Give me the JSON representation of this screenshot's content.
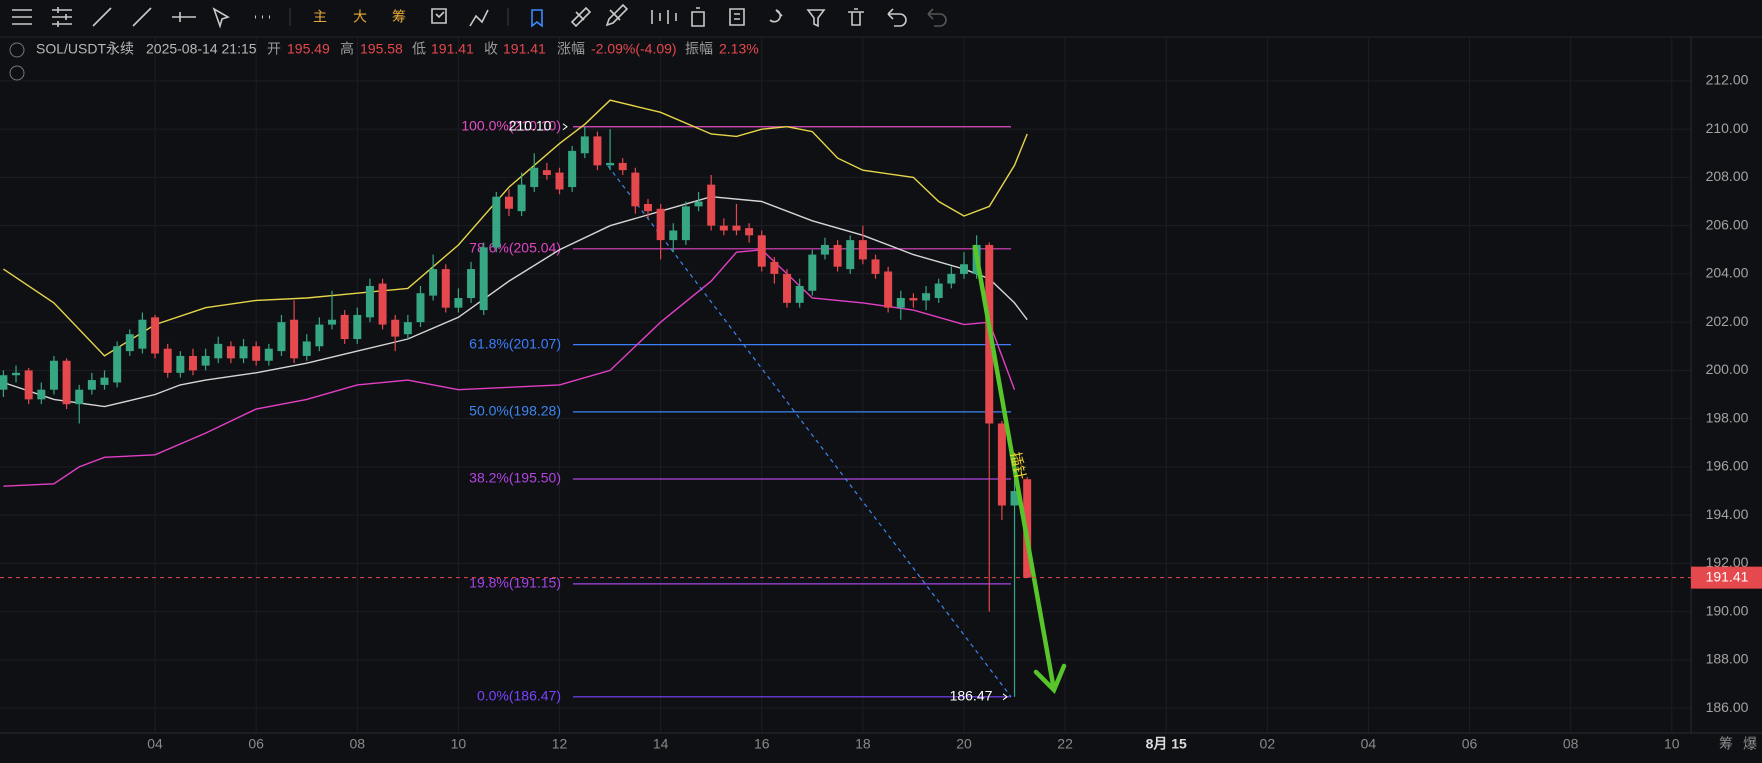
{
  "toolbar": {
    "labels": [
      "主",
      "大",
      "筹"
    ]
  },
  "header": {
    "symbol": "SOL/USDT永续",
    "datetime": "2025-08-14 21:15",
    "fields": [
      {
        "label": "开",
        "value": "195.49"
      },
      {
        "label": "高",
        "value": "195.58"
      },
      {
        "label": "低",
        "value": "191.41"
      },
      {
        "label": "收",
        "value": "191.41"
      },
      {
        "label": "涨幅",
        "value": "-2.09%(-4.09)"
      },
      {
        "label": "振幅",
        "value": "2.13%"
      }
    ]
  },
  "bottom_right": [
    "筹",
    "爆"
  ],
  "chart_data": {
    "type": "candlestick",
    "up_color": "#36a683",
    "down_color": "#e5484d",
    "xlim": [
      0.933,
      34.38
    ],
    "ylim": [
      184.97,
      213.82
    ],
    "xticks": [
      {
        "value": 4,
        "label": "04"
      },
      {
        "value": 6,
        "label": "06"
      },
      {
        "value": 8,
        "label": "08"
      },
      10,
      12,
      14,
      16,
      18,
      20,
      22,
      {
        "value": 24,
        "label": "8月 15"
      },
      {
        "value": 26,
        "label": "02"
      },
      {
        "value": 28,
        "label": "04"
      },
      {
        "value": 30,
        "label": "06"
      },
      {
        "value": 32,
        "label": "08"
      },
      {
        "value": 34,
        "label": "10"
      }
    ],
    "yticks": [
      {
        "value": 186,
        "label": "186.00"
      },
      {
        "value": 188,
        "label": "188.00"
      },
      {
        "value": 190,
        "label": "190.00"
      },
      {
        "value": 192,
        "label": "192.00"
      },
      {
        "value": 194,
        "label": "194.00"
      },
      {
        "value": 196,
        "label": "196.00"
      },
      {
        "value": 198,
        "label": "198.00"
      },
      {
        "value": 200,
        "label": "200.00"
      },
      {
        "value": 202,
        "label": "202.00"
      },
      {
        "value": 204,
        "label": "204.00"
      },
      {
        "value": 206,
        "label": "206.00"
      },
      {
        "value": 208,
        "label": "208.00"
      },
      {
        "value": 210,
        "label": "210.00"
      },
      {
        "value": 212,
        "label": "212.00"
      }
    ],
    "grid": true,
    "x": [
      1,
      1.25,
      1.5,
      1.75,
      2,
      2.25,
      2.5,
      2.75,
      3,
      3.25,
      3.5,
      3.75,
      4,
      4.25,
      4.5,
      4.75,
      5,
      5.25,
      5.5,
      5.75,
      6,
      6.25,
      6.5,
      6.75,
      7,
      7.25,
      7.5,
      7.75,
      8,
      8.25,
      8.5,
      8.75,
      9,
      9.25,
      9.5,
      9.75,
      10,
      10.25,
      10.5,
      10.75,
      11,
      11.25,
      11.5,
      11.75,
      12,
      12.25,
      12.5,
      12.75,
      13,
      13.25,
      13.5,
      13.75,
      14,
      14.25,
      14.5,
      14.75,
      15,
      15.25,
      15.5,
      15.75,
      16,
      16.25,
      16.5,
      16.75,
      17,
      17.25,
      17.5,
      17.75,
      18,
      18.25,
      18.5,
      18.75,
      19,
      19.25,
      19.5,
      19.75,
      20,
      20.25,
      20.5,
      20.75,
      21,
      21.25
    ],
    "open": [
      199.2,
      199.8,
      200.0,
      198.8,
      199.2,
      200.4,
      198.6,
      199.2,
      199.4,
      199.5,
      200.8,
      200.9,
      202.2,
      200.9,
      199.9,
      200.6,
      200.2,
      200.5,
      201.0,
      200.5,
      201.0,
      200.4,
      200.8,
      202.1,
      200.6,
      201.0,
      201.9,
      202.3,
      201.3,
      202.2,
      203.6,
      202.1,
      201.5,
      202.0,
      203.1,
      204.2,
      202.6,
      203.0,
      202.5,
      205.1,
      207.2,
      206.6,
      207.6,
      208.3,
      208.2,
      207.6,
      209.0,
      209.7,
      208.5,
      208.6,
      208.2,
      206.9,
      206.7,
      205.4,
      205.4,
      206.8,
      207.7,
      206.0,
      206.0,
      205.9,
      205.6,
      204.5,
      204.0,
      202.8,
      203.3,
      204.8,
      205.2,
      204.2,
      205.4,
      204.6,
      204.1,
      202.6,
      203.0,
      202.9,
      203.0,
      203.6,
      204.0,
      204.0,
      205.2,
      197.8,
      194.4,
      195.49
    ],
    "high": [
      200.0,
      200.2,
      200.1,
      199.5,
      200.6,
      200.5,
      199.4,
      199.9,
      200.0,
      201.2,
      201.7,
      202.4,
      202.3,
      201.1,
      200.8,
      200.9,
      200.9,
      201.4,
      201.2,
      201.3,
      201.2,
      201.1,
      202.3,
      202.9,
      201.5,
      202.2,
      203.3,
      202.5,
      202.6,
      203.8,
      203.8,
      202.3,
      202.3,
      203.5,
      204.8,
      204.4,
      203.4,
      204.5,
      205.3,
      207.4,
      207.5,
      208.2,
      209.0,
      208.6,
      208.4,
      209.3,
      210.1,
      209.9,
      210.0,
      208.8,
      208.4,
      207.1,
      206.9,
      206.1,
      207.0,
      207.4,
      208.1,
      206.3,
      206.9,
      206.1,
      205.8,
      204.7,
      204.2,
      203.8,
      205.0,
      205.5,
      205.4,
      205.6,
      206.0,
      204.8,
      204.3,
      203.3,
      203.2,
      203.5,
      203.8,
      204.3,
      204.9,
      205.6,
      205.3,
      197.9,
      195.5,
      195.58
    ],
    "low": [
      198.9,
      199.5,
      198.6,
      198.6,
      199.0,
      198.4,
      197.8,
      199.0,
      199.2,
      199.3,
      200.6,
      200.7,
      200.5,
      199.7,
      199.7,
      199.8,
      200.0,
      200.3,
      200.3,
      200.3,
      200.2,
      200.2,
      200.6,
      200.3,
      200.4,
      200.8,
      201.7,
      201.1,
      201.1,
      202.0,
      201.7,
      200.8,
      201.3,
      201.8,
      202.9,
      202.4,
      202.4,
      202.8,
      202.3,
      204.9,
      206.4,
      206.4,
      207.4,
      207.9,
      207.3,
      207.4,
      208.8,
      208.3,
      208.3,
      208.1,
      206.5,
      206.3,
      204.6,
      204.9,
      205.2,
      206.6,
      205.8,
      205.6,
      205.6,
      205.3,
      204.1,
      203.6,
      202.6,
      202.6,
      203.1,
      204.6,
      204.1,
      204.0,
      204.4,
      203.8,
      202.4,
      202.1,
      202.6,
      202.5,
      202.8,
      203.4,
      203.8,
      203.8,
      190.0,
      193.8,
      186.47,
      191.41
    ],
    "close": [
      199.8,
      199.9,
      198.8,
      199.2,
      200.4,
      198.6,
      199.2,
      199.6,
      199.7,
      201.0,
      201.5,
      202.1,
      200.7,
      199.9,
      200.6,
      200.0,
      200.6,
      201.1,
      200.5,
      201.0,
      200.4,
      200.9,
      202.0,
      200.5,
      201.2,
      201.9,
      202.1,
      201.3,
      202.3,
      203.5,
      201.9,
      201.4,
      202.0,
      203.2,
      204.2,
      202.6,
      203.0,
      204.2,
      205.1,
      207.2,
      206.7,
      207.7,
      208.4,
      208.1,
      207.5,
      209.1,
      209.7,
      208.5,
      208.6,
      208.3,
      206.8,
      206.6,
      205.4,
      205.8,
      206.8,
      207.0,
      206.0,
      205.8,
      205.8,
      205.6,
      204.3,
      204.0,
      202.8,
      203.5,
      204.8,
      205.2,
      204.3,
      205.4,
      204.6,
      204.0,
      202.6,
      203.0,
      202.9,
      203.2,
      203.6,
      204.0,
      204.4,
      205.2,
      197.8,
      194.4,
      195.0,
      191.41
    ],
    "lines": [
      {
        "name": "UP",
        "color": "#e6d54a",
        "x": [
          1,
          2,
          3,
          4,
          5,
          6,
          7,
          8,
          9,
          10,
          11,
          12,
          12.5,
          13,
          14,
          15,
          15.5,
          16,
          16.5,
          17,
          17.5,
          18,
          19,
          19.5,
          20,
          20.5,
          21,
          21.25
        ],
        "values": [
          204.2,
          202.8,
          200.6,
          201.9,
          202.6,
          202.9,
          203.0,
          203.2,
          203.4,
          205.2,
          207.6,
          209.4,
          210.2,
          211.2,
          210.7,
          209.8,
          209.7,
          210.0,
          210.1,
          209.9,
          208.8,
          208.3,
          208.0,
          207.0,
          206.4,
          206.8,
          208.5,
          209.8
        ]
      },
      {
        "name": "MB",
        "color": "#d6d6d6",
        "x": [
          1,
          2,
          3,
          4,
          4.5,
          5,
          6,
          7,
          8,
          9,
          10,
          11,
          12,
          13,
          14,
          15,
          16,
          17,
          18,
          19,
          20,
          20.5,
          21,
          21.25
        ],
        "values": [
          199.5,
          198.8,
          198.5,
          199.0,
          199.4,
          199.6,
          199.9,
          200.3,
          200.8,
          201.3,
          202.2,
          203.7,
          205.0,
          206.0,
          206.6,
          207.2,
          207.0,
          206.2,
          205.6,
          204.8,
          204.2,
          203.8,
          202.8,
          202.1
        ]
      },
      {
        "name": "DN",
        "color": "#e23fc4",
        "x": [
          1,
          2,
          2.5,
          3,
          4,
          5,
          6,
          7,
          8,
          9,
          10,
          11,
          12,
          13,
          14,
          15,
          15.5,
          16,
          17,
          18,
          19,
          20,
          20.5,
          21
        ],
        "values": [
          195.2,
          195.3,
          196.0,
          196.4,
          196.5,
          197.4,
          198.4,
          198.8,
          199.4,
          199.6,
          199.2,
          199.3,
          199.4,
          200.0,
          202.0,
          203.7,
          204.9,
          205.0,
          203.0,
          202.8,
          202.5,
          201.9,
          202.0,
          199.2
        ]
      }
    ],
    "fib_levels": [
      {
        "label": "100.0%(210.10)",
        "value": 210.1,
        "color": "#e54fc3"
      },
      {
        "label": "78.6%(205.04)",
        "value": 205.04,
        "color": "#e044c4"
      },
      {
        "label": "61.8%(201.07)",
        "value": 201.07,
        "color": "#3d7eff"
      },
      {
        "label": "50.0%(198.28)",
        "value": 198.28,
        "color": "#3d86f0"
      },
      {
        "label": "38.2%(195.50)",
        "value": 195.5,
        "color": "#b045e0"
      },
      {
        "label": "19.8%(191.15)",
        "value": 191.15,
        "color": "#a445e6"
      },
      {
        "label": "0.0%(186.47)",
        "value": 186.47,
        "color": "#7a44ff"
      }
    ],
    "point_labels": [
      {
        "value": 210.1,
        "label": "210.10"
      },
      {
        "value": 186.47,
        "label": "186.47"
      }
    ],
    "last_price": {
      "value": 191.41,
      "label": "191.41"
    },
    "annotation": "插针"
  }
}
